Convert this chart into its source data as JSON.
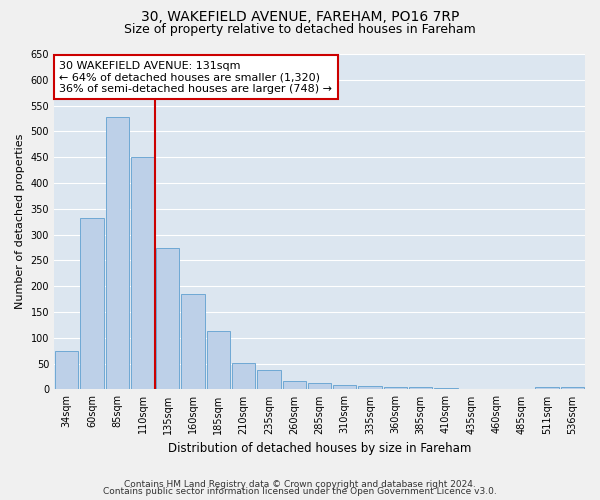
{
  "title1": "30, WAKEFIELD AVENUE, FAREHAM, PO16 7RP",
  "title2": "Size of property relative to detached houses in Fareham",
  "xlabel": "Distribution of detached houses by size in Fareham",
  "ylabel": "Number of detached properties",
  "categories": [
    "34sqm",
    "60sqm",
    "85sqm",
    "110sqm",
    "135sqm",
    "160sqm",
    "185sqm",
    "210sqm",
    "235sqm",
    "260sqm",
    "285sqm",
    "310sqm",
    "335sqm",
    "360sqm",
    "385sqm",
    "410sqm",
    "435sqm",
    "460sqm",
    "485sqm",
    "511sqm",
    "536sqm"
  ],
  "values": [
    75,
    333,
    527,
    450,
    275,
    185,
    113,
    52,
    37,
    17,
    13,
    9,
    6,
    5,
    4,
    2,
    0,
    0,
    0,
    4,
    4
  ],
  "bar_color": "#bdd0e8",
  "bar_edge_color": "#6fa8d4",
  "vline_color": "#cc0000",
  "annotation_text": "30 WAKEFIELD AVENUE: 131sqm\n← 64% of detached houses are smaller (1,320)\n36% of semi-detached houses are larger (748) →",
  "annotation_box_facecolor": "#ffffff",
  "annotation_box_edgecolor": "#cc0000",
  "ylim": [
    0,
    650
  ],
  "yticks": [
    0,
    50,
    100,
    150,
    200,
    250,
    300,
    350,
    400,
    450,
    500,
    550,
    600,
    650
  ],
  "background_color": "#dce6f0",
  "grid_color": "#ffffff",
  "footer1": "Contains HM Land Registry data © Crown copyright and database right 2024.",
  "footer2": "Contains public sector information licensed under the Open Government Licence v3.0.",
  "title1_fontsize": 10,
  "title2_fontsize": 9,
  "xlabel_fontsize": 8.5,
  "ylabel_fontsize": 8,
  "tick_fontsize": 7,
  "annotation_fontsize": 8,
  "footer_fontsize": 6.5
}
